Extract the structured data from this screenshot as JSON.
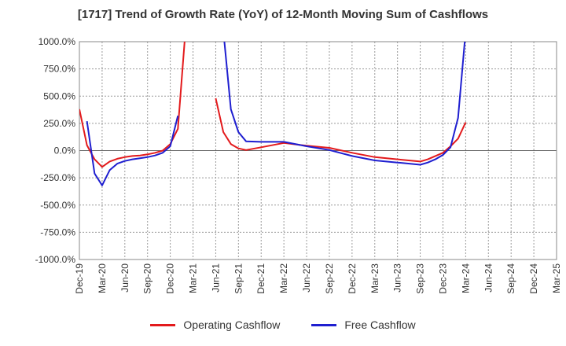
{
  "chart_data": {
    "type": "line",
    "title": "[1717]  Trend of Growth Rate (YoY) of 12-Month Moving Sum of Cashflows",
    "xlabel": "",
    "ylabel": "",
    "ylim": [
      -1000,
      1000
    ],
    "y_ticks": [
      "1000.0%",
      "750.0%",
      "500.0%",
      "250.0%",
      "0.0%",
      "-250.0%",
      "-500.0%",
      "-750.0%",
      "-1000.0%"
    ],
    "y_tick_values": [
      1000,
      750,
      500,
      250,
      0,
      -250,
      -500,
      -750,
      -1000
    ],
    "x_tick_labels": [
      "Dec-19",
      "Mar-20",
      "Jun-20",
      "Sep-20",
      "Dec-20",
      "Mar-21",
      "Jun-21",
      "Sep-21",
      "Dec-21",
      "Mar-22",
      "Jun-22",
      "Sep-22",
      "Dec-22",
      "Mar-23",
      "Jun-23",
      "Sep-23",
      "Dec-23",
      "Mar-24",
      "Jun-24",
      "Sep-24",
      "Dec-24",
      "Mar-25"
    ],
    "x_start": "2019-12",
    "months_total": 63,
    "grid": true,
    "legend_position": "bottom",
    "series": [
      {
        "name": "Operating Cashflow",
        "color": "#e31a1c",
        "points": [
          [
            "2019-12",
            380
          ],
          [
            "2020-01",
            50
          ],
          [
            "2020-02",
            -80
          ],
          [
            "2020-03",
            -150
          ],
          [
            "2020-04",
            -100
          ],
          [
            "2020-05",
            -75
          ],
          [
            "2020-06",
            -60
          ],
          [
            "2020-07",
            -50
          ],
          [
            "2020-08",
            -45
          ],
          [
            "2020-09",
            -35
          ],
          [
            "2020-10",
            -20
          ],
          [
            "2020-11",
            0
          ],
          [
            "2020-12",
            60
          ],
          [
            "2021-01",
            200
          ],
          [
            "2021-02",
            1100
          ],
          null,
          [
            "2021-06",
            480
          ],
          [
            "2021-07",
            170
          ],
          [
            "2021-08",
            60
          ],
          [
            "2021-09",
            20
          ],
          [
            "2021-10",
            5
          ],
          [
            "2021-12",
            30
          ],
          [
            "2022-03",
            70
          ],
          [
            "2022-06",
            45
          ],
          [
            "2022-09",
            25
          ],
          [
            "2022-12",
            -20
          ],
          [
            "2023-03",
            -60
          ],
          [
            "2023-06",
            -80
          ],
          [
            "2023-09",
            -100
          ],
          [
            "2023-10",
            -80
          ],
          [
            "2023-11",
            -50
          ],
          [
            "2023-12",
            -20
          ],
          [
            "2024-01",
            40
          ],
          [
            "2024-02",
            110
          ],
          [
            "2024-03",
            260
          ]
        ]
      },
      {
        "name": "Free Cashflow",
        "color": "#1f1fd0",
        "points": [
          [
            "2020-01",
            270
          ],
          [
            "2020-02",
            -210
          ],
          [
            "2020-03",
            -320
          ],
          [
            "2020-04",
            -180
          ],
          [
            "2020-05",
            -120
          ],
          [
            "2020-06",
            -95
          ],
          [
            "2020-07",
            -80
          ],
          [
            "2020-08",
            -70
          ],
          [
            "2020-09",
            -60
          ],
          [
            "2020-10",
            -45
          ],
          [
            "2020-11",
            -20
          ],
          [
            "2020-12",
            40
          ],
          [
            "2021-01",
            320
          ],
          null,
          [
            "2021-07",
            1100
          ],
          [
            "2021-08",
            380
          ],
          [
            "2021-09",
            170
          ],
          [
            "2021-10",
            85
          ],
          [
            "2021-12",
            80
          ],
          [
            "2022-03",
            80
          ],
          [
            "2022-06",
            40
          ],
          [
            "2022-09",
            5
          ],
          [
            "2022-12",
            -50
          ],
          [
            "2023-03",
            -90
          ],
          [
            "2023-06",
            -110
          ],
          [
            "2023-09",
            -130
          ],
          [
            "2023-10",
            -110
          ],
          [
            "2023-11",
            -80
          ],
          [
            "2023-12",
            -40
          ],
          [
            "2024-01",
            30
          ],
          [
            "2024-02",
            300
          ],
          [
            "2024-03",
            1100
          ]
        ]
      }
    ]
  }
}
